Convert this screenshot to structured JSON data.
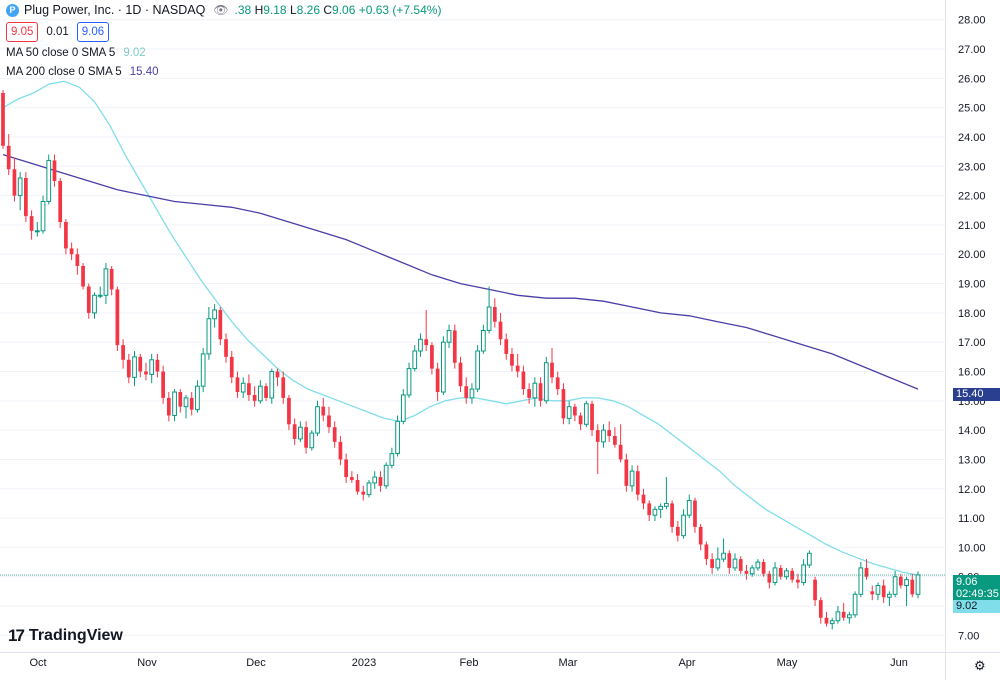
{
  "header": {
    "logo_letter": "P",
    "title": "Plug Power, Inc. · 1D · NASDAQ",
    "eye_icon": "eye-icon",
    "ohlc_prefix": ".38",
    "high_label": "H",
    "high": "9.18",
    "low_label": "L",
    "low": "8.26",
    "close_label": "C",
    "close": "9.06",
    "change": "+0.63 (+7.54%)"
  },
  "trade": {
    "sell": "9.05",
    "spread": "0.01",
    "buy": "9.06"
  },
  "indicators": [
    {
      "label": "MA 50 close 0 SMA 5",
      "value": "9.02",
      "color": "#80deea"
    },
    {
      "label": "MA 200 close 0 SMA 5",
      "value": "15.40",
      "color": "#4a3fa8"
    }
  ],
  "brand": {
    "mark": "17",
    "name": "TradingView"
  },
  "last_price": {
    "price": "9.06",
    "countdown": "02:49:35",
    "color": "#089981"
  },
  "ma200_tag": {
    "value": "15.40",
    "color": "#2a3f8f"
  },
  "ma50_tag": {
    "value": "9.02",
    "color": "#80deea"
  },
  "colors": {
    "up": "#089981",
    "down": "#f23645",
    "grid": "#f0f3fa",
    "axis_text": "#131722"
  },
  "chart_data": {
    "type": "candlestick",
    "y_ticks": [
      "7.00",
      "8.00",
      "9.00",
      "10.00",
      "11.00",
      "12.00",
      "13.00",
      "14.00",
      "15.00",
      "16.00",
      "17.00",
      "18.00",
      "19.00",
      "20.00",
      "21.00",
      "22.00",
      "23.00",
      "24.00",
      "25.00",
      "26.00",
      "27.00",
      "28.00"
    ],
    "ylim": [
      6.5,
      28.4
    ],
    "x_ticks": [
      "Oct",
      "Nov",
      "Dec",
      "2023",
      "Feb",
      "Mar",
      "Apr",
      "May",
      "Jun"
    ],
    "candles": [
      [
        25.5,
        25.6,
        23.6,
        23.7
      ],
      [
        23.7,
        24.1,
        22.7,
        22.9
      ],
      [
        22.9,
        23.3,
        21.8,
        22.0
      ],
      [
        22.0,
        22.8,
        21.5,
        22.6
      ],
      [
        22.6,
        22.8,
        21.1,
        21.3
      ],
      [
        21.3,
        21.5,
        20.5,
        20.8
      ],
      [
        20.8,
        21.1,
        20.6,
        20.8
      ],
      [
        20.8,
        22.0,
        20.7,
        21.8
      ],
      [
        21.8,
        23.4,
        21.7,
        23.2
      ],
      [
        23.2,
        23.4,
        22.3,
        22.5
      ],
      [
        22.5,
        22.6,
        20.9,
        21.1
      ],
      [
        21.1,
        21.2,
        20.0,
        20.2
      ],
      [
        20.2,
        20.4,
        19.8,
        20.0
      ],
      [
        20.0,
        20.2,
        19.3,
        19.6
      ],
      [
        19.6,
        19.7,
        18.8,
        18.9
      ],
      [
        18.9,
        19.0,
        17.8,
        18.0
      ],
      [
        18.0,
        18.7,
        17.8,
        18.6
      ],
      [
        18.6,
        18.9,
        18.5,
        18.6
      ],
      [
        18.6,
        19.7,
        18.3,
        19.5
      ],
      [
        19.5,
        19.6,
        18.6,
        18.8
      ],
      [
        18.8,
        18.9,
        16.7,
        16.9
      ],
      [
        16.9,
        17.1,
        16.1,
        16.4
      ],
      [
        16.4,
        16.6,
        15.6,
        15.8
      ],
      [
        15.8,
        16.7,
        15.5,
        16.5
      ],
      [
        16.5,
        16.6,
        15.8,
        16.0
      ],
      [
        16.0,
        16.3,
        15.7,
        15.9
      ],
      [
        15.9,
        16.6,
        15.6,
        16.4
      ],
      [
        16.4,
        16.6,
        15.8,
        16.0
      ],
      [
        16.0,
        16.2,
        14.9,
        15.1
      ],
      [
        15.1,
        15.3,
        14.3,
        14.5
      ],
      [
        14.5,
        15.4,
        14.3,
        15.3
      ],
      [
        15.3,
        15.4,
        14.6,
        14.8
      ],
      [
        14.8,
        15.2,
        14.4,
        15.1
      ],
      [
        15.1,
        15.3,
        14.5,
        14.7
      ],
      [
        14.7,
        15.7,
        14.6,
        15.5
      ],
      [
        15.5,
        16.8,
        15.3,
        16.6
      ],
      [
        16.6,
        18.2,
        16.4,
        17.8
      ],
      [
        17.8,
        18.3,
        17.5,
        18.1
      ],
      [
        18.1,
        18.2,
        16.9,
        17.1
      ],
      [
        17.1,
        17.3,
        16.3,
        16.5
      ],
      [
        16.5,
        16.7,
        15.6,
        15.8
      ],
      [
        15.8,
        16.0,
        15.1,
        15.3
      ],
      [
        15.3,
        15.8,
        15.1,
        15.6
      ],
      [
        15.6,
        15.9,
        15.0,
        15.2
      ],
      [
        15.2,
        15.5,
        14.8,
        15.0
      ],
      [
        15.0,
        15.7,
        14.9,
        15.5
      ],
      [
        15.5,
        15.6,
        15.0,
        15.1
      ],
      [
        15.1,
        16.1,
        14.9,
        16.0
      ],
      [
        16.0,
        16.1,
        15.5,
        15.8
      ],
      [
        15.8,
        16.0,
        14.9,
        15.1
      ],
      [
        15.1,
        15.2,
        14.0,
        14.2
      ],
      [
        14.2,
        14.4,
        13.5,
        13.7
      ],
      [
        13.7,
        14.3,
        13.6,
        14.1
      ],
      [
        14.1,
        14.3,
        13.2,
        13.4
      ],
      [
        13.4,
        14.0,
        13.3,
        13.9
      ],
      [
        13.9,
        15.0,
        13.8,
        14.8
      ],
      [
        14.8,
        15.1,
        14.3,
        14.5
      ],
      [
        14.5,
        14.8,
        13.9,
        14.1
      ],
      [
        14.1,
        14.3,
        13.4,
        13.6
      ],
      [
        13.6,
        13.8,
        12.8,
        13.0
      ],
      [
        13.0,
        13.2,
        12.2,
        12.4
      ],
      [
        12.4,
        12.6,
        12.2,
        12.3
      ],
      [
        12.3,
        12.5,
        11.8,
        11.9
      ],
      [
        11.9,
        12.1,
        11.6,
        11.8
      ],
      [
        11.8,
        12.3,
        11.7,
        12.2
      ],
      [
        12.2,
        12.6,
        12.0,
        12.4
      ],
      [
        12.4,
        12.6,
        11.9,
        12.1
      ],
      [
        12.1,
        12.9,
        12.0,
        12.8
      ],
      [
        12.8,
        13.4,
        12.7,
        13.2
      ],
      [
        13.2,
        14.5,
        13.1,
        14.3
      ],
      [
        14.3,
        15.4,
        14.2,
        15.2
      ],
      [
        15.2,
        16.3,
        15.1,
        16.1
      ],
      [
        16.1,
        16.9,
        16.0,
        16.7
      ],
      [
        16.7,
        17.3,
        16.5,
        17.1
      ],
      [
        17.1,
        18.1,
        16.7,
        16.9
      ],
      [
        16.9,
        17.0,
        15.9,
        16.1
      ],
      [
        16.1,
        16.3,
        15.0,
        15.3
      ],
      [
        15.3,
        17.2,
        15.2,
        17.0
      ],
      [
        17.0,
        17.6,
        16.8,
        17.4
      ],
      [
        17.4,
        17.6,
        16.1,
        16.3
      ],
      [
        16.3,
        16.5,
        15.3,
        15.5
      ],
      [
        15.5,
        15.8,
        14.9,
        15.1
      ],
      [
        15.1,
        15.6,
        14.9,
        15.4
      ],
      [
        15.4,
        16.9,
        15.3,
        16.7
      ],
      [
        16.7,
        17.6,
        16.6,
        17.4
      ],
      [
        17.4,
        18.9,
        17.3,
        18.2
      ],
      [
        18.2,
        18.5,
        17.5,
        17.7
      ],
      [
        17.7,
        18.0,
        16.9,
        17.1
      ],
      [
        17.1,
        17.3,
        16.4,
        16.6
      ],
      [
        16.6,
        16.8,
        16.0,
        16.2
      ],
      [
        16.2,
        16.6,
        15.8,
        16.0
      ],
      [
        16.0,
        16.2,
        15.2,
        15.4
      ],
      [
        15.4,
        15.6,
        14.9,
        15.1
      ],
      [
        15.1,
        15.8,
        14.8,
        15.6
      ],
      [
        15.6,
        15.8,
        14.8,
        15.0
      ],
      [
        15.0,
        16.5,
        14.9,
        16.3
      ],
      [
        16.3,
        16.8,
        15.6,
        15.8
      ],
      [
        15.8,
        16.0,
        15.2,
        15.4
      ],
      [
        15.4,
        15.6,
        14.2,
        14.4
      ],
      [
        14.4,
        15.0,
        14.2,
        14.8
      ],
      [
        14.8,
        14.9,
        14.3,
        14.5
      ],
      [
        14.5,
        14.6,
        14.0,
        14.2
      ],
      [
        14.2,
        15.0,
        14.1,
        14.9
      ],
      [
        14.9,
        15.0,
        13.8,
        14.0
      ],
      [
        14.0,
        14.2,
        12.5,
        13.6
      ],
      [
        13.6,
        14.2,
        13.4,
        14.0
      ],
      [
        14.0,
        14.3,
        13.6,
        13.8
      ],
      [
        13.8,
        14.1,
        13.4,
        13.5
      ],
      [
        13.5,
        14.2,
        12.9,
        13.0
      ],
      [
        13.0,
        13.2,
        11.9,
        12.1
      ],
      [
        12.1,
        12.8,
        11.9,
        12.6
      ],
      [
        12.6,
        12.8,
        11.6,
        11.8
      ],
      [
        11.8,
        12.0,
        11.3,
        11.5
      ],
      [
        11.5,
        11.6,
        10.9,
        11.1
      ],
      [
        11.1,
        11.4,
        10.9,
        11.3
      ],
      [
        11.3,
        11.5,
        11.0,
        11.4
      ],
      [
        11.4,
        12.4,
        11.3,
        11.5
      ],
      [
        11.5,
        11.6,
        10.5,
        10.7
      ],
      [
        10.7,
        10.9,
        10.2,
        10.4
      ],
      [
        10.4,
        11.3,
        10.3,
        11.1
      ],
      [
        11.1,
        11.8,
        11.0,
        11.6
      ],
      [
        11.6,
        11.7,
        10.5,
        10.7
      ],
      [
        10.7,
        10.8,
        9.9,
        10.1
      ],
      [
        10.1,
        10.2,
        9.4,
        9.6
      ],
      [
        9.6,
        9.8,
        9.1,
        9.3
      ],
      [
        9.3,
        10.0,
        9.2,
        9.6
      ],
      [
        9.6,
        10.3,
        9.5,
        9.8
      ],
      [
        9.8,
        9.9,
        9.1,
        9.3
      ],
      [
        9.3,
        9.8,
        9.2,
        9.6
      ],
      [
        9.6,
        9.7,
        9.1,
        9.2
      ],
      [
        9.2,
        9.4,
        8.9,
        9.1
      ],
      [
        9.1,
        9.4,
        9.0,
        9.3
      ],
      [
        9.3,
        9.6,
        9.2,
        9.5
      ],
      [
        9.5,
        9.6,
        9.0,
        9.1
      ],
      [
        9.1,
        9.2,
        8.6,
        8.8
      ],
      [
        8.8,
        9.5,
        8.7,
        9.3
      ],
      [
        9.3,
        9.4,
        8.9,
        9.0
      ],
      [
        9.0,
        9.3,
        8.9,
        9.2
      ],
      [
        9.2,
        9.3,
        8.8,
        8.9
      ],
      [
        8.9,
        9.1,
        8.6,
        8.8
      ],
      [
        8.8,
        9.6,
        8.7,
        9.4
      ],
      [
        9.4,
        9.9,
        9.3,
        9.8
      ],
      [
        8.9,
        9.0,
        8.0,
        8.2
      ],
      [
        8.2,
        8.3,
        7.4,
        7.6
      ],
      [
        7.6,
        7.8,
        7.3,
        7.4
      ],
      [
        7.4,
        7.6,
        7.2,
        7.5
      ],
      [
        7.5,
        8.0,
        7.4,
        7.8
      ],
      [
        7.8,
        8.1,
        7.5,
        7.6
      ],
      [
        7.6,
        7.8,
        7.4,
        7.7
      ],
      [
        7.7,
        8.5,
        7.6,
        8.4
      ],
      [
        8.4,
        9.5,
        8.3,
        9.3
      ],
      [
        9.3,
        9.6,
        8.9,
        9.0
      ],
      [
        8.5,
        8.7,
        8.2,
        8.4
      ],
      [
        8.4,
        8.8,
        8.2,
        8.7
      ],
      [
        8.7,
        8.9,
        8.1,
        8.3
      ],
      [
        8.3,
        8.5,
        8.0,
        8.4
      ],
      [
        8.4,
        9.2,
        8.3,
        9.0
      ],
      [
        9.0,
        9.1,
        8.6,
        8.7
      ],
      [
        8.7,
        9.0,
        8.0,
        8.9
      ],
      [
        8.9,
        9.1,
        8.3,
        8.4
      ],
      [
        8.4,
        9.18,
        8.26,
        9.06
      ]
    ],
    "series": [
      {
        "name": "MA 50 close 0 SMA 5",
        "color": "#80deea",
        "values": [
          25.0,
          25.3,
          25.5,
          25.8,
          25.9,
          25.7,
          25.2,
          24.4,
          23.4,
          22.5,
          21.6,
          20.7,
          19.9,
          19.1,
          18.4,
          17.7,
          17.1,
          16.6,
          16.1,
          15.7,
          15.4,
          15.2,
          15.0,
          14.8,
          14.6,
          14.4,
          14.3,
          14.5,
          14.8,
          15.0,
          15.1,
          15.1,
          15.0,
          14.9,
          15.0,
          15.1,
          15.0,
          15.0,
          15.1,
          15.1,
          15.0,
          14.8,
          14.5,
          14.2,
          13.8,
          13.4,
          13.0,
          12.6,
          12.1,
          11.7,
          11.3,
          11.0,
          10.7,
          10.4,
          10.1,
          9.85,
          9.65,
          9.45,
          9.3,
          9.15,
          9.05
        ]
      },
      {
        "name": "MA 200 close 0 SMA 5",
        "color": "#4a3fa8",
        "values": [
          23.4,
          23.1,
          22.8,
          22.5,
          22.2,
          22.0,
          21.8,
          21.7,
          21.6,
          21.4,
          21.1,
          20.8,
          20.5,
          20.1,
          19.7,
          19.3,
          19.0,
          18.8,
          18.6,
          18.5,
          18.5,
          18.4,
          18.2,
          18.0,
          17.9,
          17.7,
          17.5,
          17.2,
          16.9,
          16.6,
          16.2,
          15.8,
          15.4
        ]
      }
    ]
  }
}
